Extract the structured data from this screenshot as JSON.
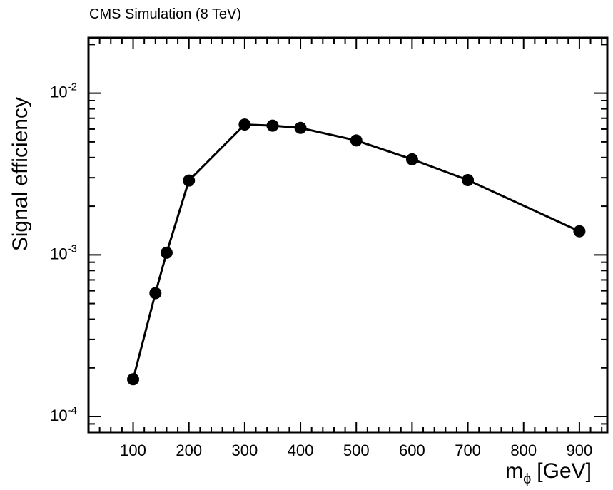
{
  "chart_data": {
    "type": "line",
    "title": "CMS Simulation (8 TeV)",
    "xlabel": "m",
    "xlabel_sub": "ϕ",
    "xlabel_unit": "[GeV]",
    "ylabel": "Signal efficiency",
    "xlim": [
      20,
      950
    ],
    "ylim": [
      8e-05,
      0.022
    ],
    "ylog": true,
    "grid": false,
    "x_ticks": [
      100,
      200,
      300,
      400,
      500,
      600,
      700,
      800,
      900
    ],
    "x_tick_labels": [
      "100",
      "200",
      "300",
      "400",
      "500",
      "600",
      "700",
      "800",
      "900"
    ],
    "y_ticks": [
      {
        "value": 0.0001,
        "base": "10",
        "exp": "-4"
      },
      {
        "value": 0.001,
        "base": "10",
        "exp": "-3"
      },
      {
        "value": 0.01,
        "base": "10",
        "exp": "-2"
      }
    ],
    "series": [
      {
        "x": [
          100,
          140,
          160,
          200,
          300,
          350,
          400,
          500,
          600,
          700,
          900
        ],
        "y": [
          0.00017,
          0.00058,
          0.00103,
          0.00288,
          0.0064,
          0.0063,
          0.0061,
          0.0051,
          0.0039,
          0.0029,
          0.0014
        ],
        "color": "#000000"
      }
    ]
  }
}
